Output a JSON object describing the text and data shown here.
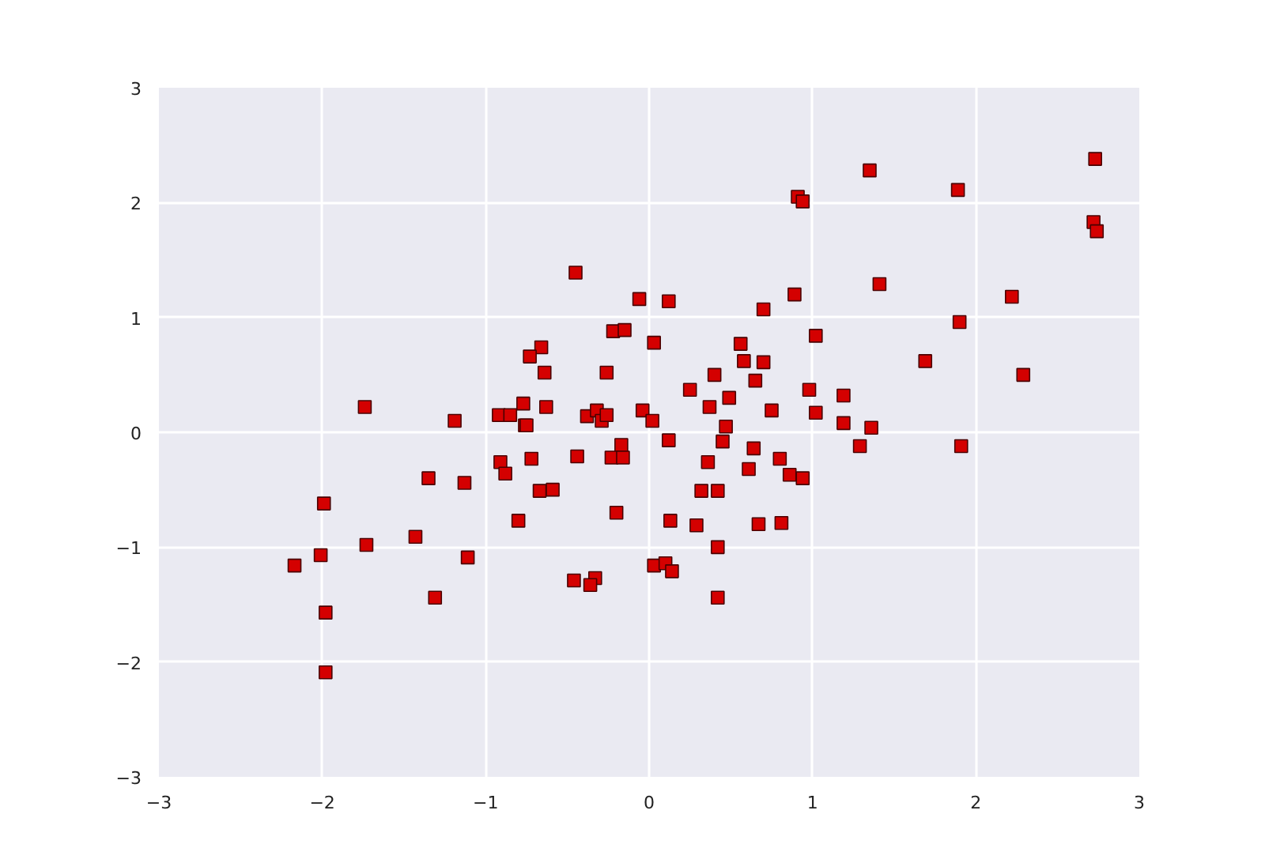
{
  "chart_data": {
    "type": "scatter",
    "marker": "square",
    "grid": true,
    "xlim": [
      -3,
      3
    ],
    "ylim": [
      -3,
      3
    ],
    "xticks": [
      -3,
      -2,
      -1,
      0,
      1,
      2,
      3
    ],
    "yticks": [
      -3,
      -2,
      -1,
      0,
      1,
      2,
      3
    ],
    "series": [
      {
        "color": "#d40000",
        "x": [
          -0.45,
          -0.06,
          -0.22,
          -0.15,
          -0.66,
          -0.73,
          -0.64,
          -0.26,
          -1.74,
          -1.19,
          -0.92,
          -0.85,
          -0.77,
          -0.63,
          -0.76,
          -0.75,
          -0.38,
          -0.32,
          -0.29,
          -0.26,
          -0.04,
          -0.17,
          -0.44,
          -0.23,
          -0.16,
          -0.91,
          -0.88,
          -0.72,
          -1.35,
          -1.13,
          -0.67,
          -0.59,
          -0.2,
          -0.8,
          -1.99,
          -1.73,
          -1.43,
          -2.01,
          -2.17,
          -1.11,
          -0.46,
          -0.33,
          -0.36,
          -1.31,
          -1.98,
          -1.98,
          0.12,
          0.7,
          0.89,
          1.41,
          0.03,
          0.56,
          0.58,
          0.7,
          0.4,
          0.65,
          1.02,
          0.25,
          0.49,
          0.37,
          0.75,
          0.98,
          1.19,
          1.02,
          0.02,
          1.19,
          1.36,
          1.29,
          0.12,
          0.47,
          0.45,
          0.64,
          0.36,
          0.61,
          0.8,
          0.86,
          0.94,
          0.32,
          0.42,
          0.13,
          0.29,
          0.67,
          0.81,
          0.42,
          0.03,
          0.1,
          0.14,
          0.42,
          1.35,
          1.89,
          2.73,
          0.91,
          0.94,
          2.72,
          2.74,
          2.22,
          1.9,
          1.69,
          2.29,
          1.91
        ],
        "values": [
          1.39,
          1.16,
          0.88,
          0.89,
          0.74,
          0.66,
          0.52,
          0.52,
          0.22,
          0.1,
          0.15,
          0.15,
          0.25,
          0.22,
          0.06,
          0.06,
          0.14,
          0.19,
          0.1,
          0.15,
          0.19,
          -0.11,
          -0.21,
          -0.22,
          -0.22,
          -0.26,
          -0.36,
          -0.23,
          -0.4,
          -0.44,
          -0.51,
          -0.5,
          -0.7,
          -0.77,
          -0.62,
          -0.98,
          -0.91,
          -1.07,
          -1.16,
          -1.09,
          -1.29,
          -1.27,
          -1.33,
          -1.44,
          -1.57,
          -2.09,
          1.14,
          1.07,
          1.2,
          1.29,
          0.78,
          0.77,
          0.62,
          0.61,
          0.5,
          0.45,
          0.84,
          0.37,
          0.3,
          0.22,
          0.19,
          0.37,
          0.32,
          0.17,
          0.1,
          0.08,
          0.04,
          -0.12,
          -0.07,
          0.05,
          -0.08,
          -0.14,
          -0.26,
          -0.32,
          -0.23,
          -0.37,
          -0.4,
          -0.51,
          -0.51,
          -0.77,
          -0.81,
          -0.8,
          -0.79,
          -1.0,
          -1.16,
          -1.14,
          -1.21,
          -1.44,
          2.28,
          2.11,
          2.38,
          2.05,
          2.01,
          1.83,
          1.75,
          1.18,
          0.96,
          0.62,
          0.5,
          -0.12
        ]
      }
    ]
  }
}
